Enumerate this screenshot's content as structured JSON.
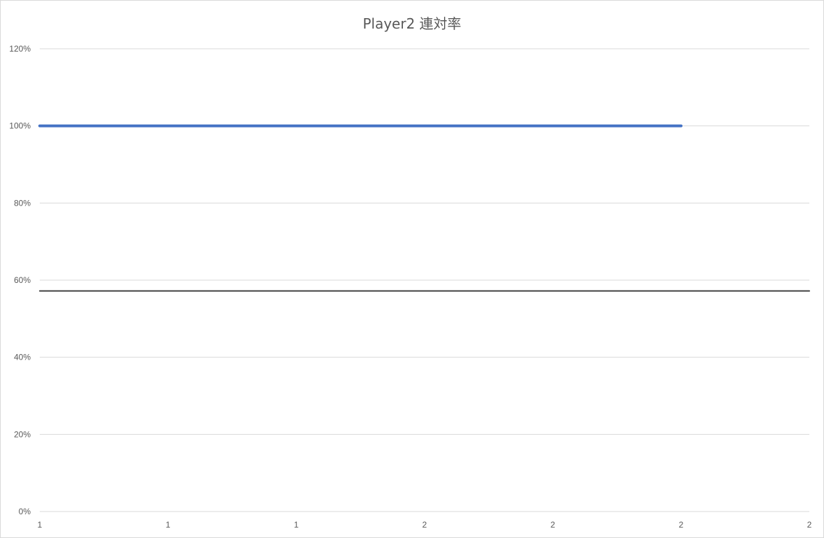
{
  "chart_data": {
    "type": "line",
    "title": "Player2 連対率",
    "xlabel": "",
    "ylabel": "",
    "x_tick_labels": [
      "1",
      "1",
      "1",
      "2",
      "2",
      "2",
      "2"
    ],
    "y_tick_labels": [
      "0%",
      "20%",
      "40%",
      "60%",
      "80%",
      "100%",
      "120%"
    ],
    "ylim": [
      0,
      1.2
    ],
    "grid": true,
    "legend": "none",
    "series": [
      {
        "x_index": [
          0,
          5
        ],
        "values": [
          1.0,
          1.0
        ],
        "color": "#4472c4"
      },
      {
        "x_index": [
          0,
          6
        ],
        "values": [
          0.572,
          0.572
        ],
        "color": "#404040"
      }
    ]
  }
}
